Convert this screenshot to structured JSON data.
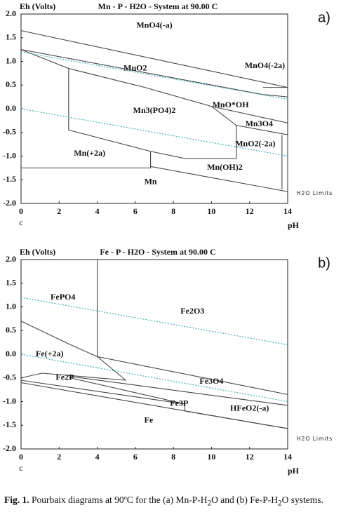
{
  "chart_data": [
    {
      "type": "pourbaix",
      "panel": "a)",
      "title": "Mn - P - H2O - System at 90.00 C",
      "y_label": "Eh (Volts)",
      "x_label": "pH",
      "origin_label": "c",
      "xlim": [
        0,
        14
      ],
      "ylim": [
        -2,
        2
      ],
      "xticks": [
        0,
        2,
        4,
        6,
        8,
        10,
        12,
        14
      ],
      "yticks": [
        {
          "value": 2,
          "label": "2.0"
        },
        1.5,
        {
          "value": 1,
          "label": "1.0"
        },
        0.5,
        {
          "value": 0,
          "label": "0.0"
        },
        -0.5,
        {
          "value": -1,
          "label": "-1.0"
        },
        -1.5,
        {
          "value": -2,
          "label": "-2.0"
        }
      ],
      "boundaries": [
        {
          "x": [
            0,
            14
          ],
          "y": [
            1.65,
            0.45
          ]
        },
        {
          "x": [
            0,
            12.7,
            14
          ],
          "y": [
            1.25,
            0.3,
            0.25
          ]
        },
        {
          "x": [
            12.7,
            14
          ],
          "y": [
            0.45,
            0.45
          ]
        },
        {
          "x": [
            0,
            2.5,
            6.5,
            10,
            11.3
          ],
          "y": [
            1.25,
            0.85,
            0.45,
            0.05,
            -0.35
          ]
        },
        {
          "x": [
            10,
            14
          ],
          "y": [
            0.05,
            -0.3
          ]
        },
        {
          "x": [
            11.3,
            14,
            14
          ],
          "y": [
            -0.35,
            -0.55,
            -1.75
          ]
        },
        {
          "x": [
            2.5,
            2.5,
            6.8,
            8.6,
            11.3,
            11.3
          ],
          "y": [
            0.85,
            -0.45,
            -0.9,
            -1.05,
            -1.05,
            -0.35
          ]
        },
        {
          "x": [
            0,
            6.8,
            6.8
          ],
          "y": [
            -1.25,
            -1.25,
            -0.9
          ]
        },
        {
          "x": [
            6.8,
            14
          ],
          "y": [
            -1.22,
            -1.75
          ]
        },
        {
          "x": [
            13.7,
            13.7
          ],
          "y": [
            -0.55,
            -1.7
          ]
        }
      ],
      "h2o_limits": {
        "name": "H2O Limits",
        "color": "#3aa8b0",
        "lines": [
          {
            "x": [
              0,
              14
            ],
            "y": [
              1.2,
              0.2
            ]
          },
          {
            "x": [
              0,
              14
            ],
            "y": [
              0,
              -1.0
            ]
          }
        ]
      },
      "regions": [
        {
          "label": "MnO4(-a)",
          "x": 7,
          "y": 1.75
        },
        {
          "label": "MnO2",
          "x": 6,
          "y": 0.85
        },
        {
          "label": "MnO4(-2a)",
          "x": 12.8,
          "y": 0.9
        },
        {
          "label": "MnO*OH",
          "x": 11,
          "y": 0.07
        },
        {
          "label": "Mn3(PO4)2",
          "x": 7,
          "y": -0.05
        },
        {
          "label": "Mn3O4",
          "x": 12.5,
          "y": -0.33
        },
        {
          "label": "MnO2(-2a)",
          "x": 12.3,
          "y": -0.75
        },
        {
          "label": "Mn(+2a)",
          "x": 3.6,
          "y": -0.95
        },
        {
          "label": "Mn(OH)2",
          "x": 10.7,
          "y": -1.25
        },
        {
          "label": "Mn",
          "x": 6.8,
          "y": -1.55
        }
      ]
    },
    {
      "type": "pourbaix",
      "panel": "b)",
      "title": "Fe - P - H2O - System at 90.00 C",
      "y_label": "Eh (Volts)",
      "x_label": "pH",
      "origin_label": "c",
      "xlim": [
        0,
        14
      ],
      "ylim": [
        -2,
        2
      ],
      "xticks": [
        0,
        2,
        4,
        6,
        8,
        10,
        12,
        14
      ],
      "yticks": [
        {
          "value": 2,
          "label": "2.0"
        },
        1.5,
        {
          "value": 1,
          "label": "1.0"
        },
        0.5,
        {
          "value": 0,
          "label": "0.0"
        },
        -0.5,
        {
          "value": -1,
          "label": "-1.0"
        },
        -1.5,
        {
          "value": -2,
          "label": "-2.0"
        }
      ],
      "boundaries": [
        {
          "x": [
            4,
            4
          ],
          "y": [
            2,
            -0.05
          ]
        },
        {
          "x": [
            0,
            2.6,
            4,
            5.5
          ],
          "y": [
            0.7,
            0.2,
            -0.05,
            -0.55
          ]
        },
        {
          "x": [
            4,
            14
          ],
          "y": [
            -0.05,
            -0.85
          ]
        },
        {
          "x": [
            2.6,
            14
          ],
          "y": [
            -0.47,
            -1.08
          ]
        },
        {
          "x": [
            0,
            1.1,
            2.6,
            5.5
          ],
          "y": [
            -0.5,
            -0.4,
            -0.45,
            -0.55
          ]
        },
        {
          "x": [
            0,
            8.6,
            8.6
          ],
          "y": [
            -0.55,
            -1.05,
            -1.2
          ]
        },
        {
          "x": [
            2.6,
            8.6
          ],
          "y": [
            -0.5,
            -1.05
          ]
        },
        {
          "x": [
            0,
            14
          ],
          "y": [
            -0.6,
            -1.57
          ]
        },
        {
          "x": [
            8.6,
            14
          ],
          "y": [
            -1.2,
            -1.57
          ]
        }
      ],
      "h2o_limits": {
        "name": "H2O Limits",
        "color": "#3aa8b0",
        "lines": [
          {
            "x": [
              0,
              14
            ],
            "y": [
              1.2,
              0.2
            ]
          },
          {
            "x": [
              0,
              14
            ],
            "y": [
              0,
              -1.0
            ]
          }
        ]
      },
      "regions": [
        {
          "label": "FePO4",
          "x": 2.2,
          "y": 1.2
        },
        {
          "label": "Fe2O3",
          "x": 9,
          "y": 0.9
        },
        {
          "label": "Fe(+2a)",
          "x": 1.5,
          "y": 0.0
        },
        {
          "label": "Fe2P",
          "x": 2.3,
          "y": -0.5
        },
        {
          "label": "Fe3O4",
          "x": 10,
          "y": -0.58
        },
        {
          "label": "Fe3P",
          "x": 8.3,
          "y": -1.05
        },
        {
          "label": "HFeO2(-a)",
          "x": 12,
          "y": -1.15
        },
        {
          "label": "Fe",
          "x": 6.7,
          "y": -1.4
        }
      ]
    }
  ],
  "caption": {
    "label": "Fig. 1.",
    "parts": [
      " Pourbaix diagrams at 90ºC for the (a) Mn-P-H",
      "2",
      "O and (b) Fe-P-H",
      "2",
      "O systems."
    ]
  }
}
